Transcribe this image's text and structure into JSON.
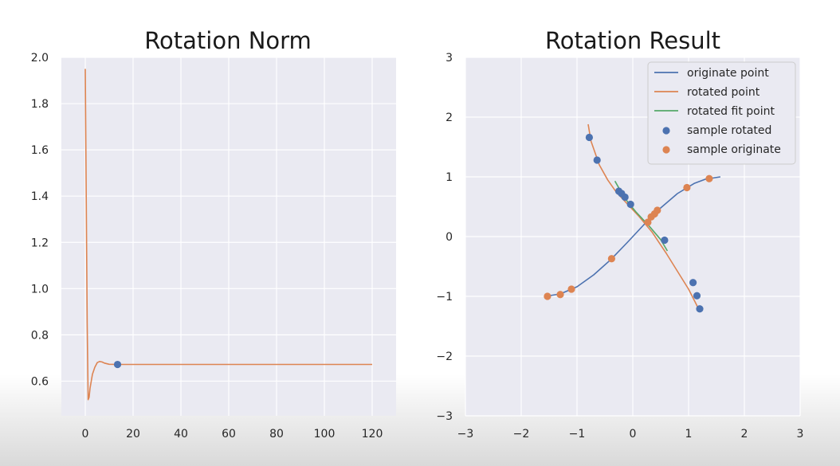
{
  "colors": {
    "panel_bg": "#eaeaf2",
    "grid": "#ffffff",
    "blue": "#4c72b0",
    "orange": "#dd8452",
    "green": "#55a868"
  },
  "chart_data": [
    {
      "type": "line",
      "title": "Rotation Norm",
      "xlim": [
        -10,
        130
      ],
      "ylim": [
        0.45,
        2.0
      ],
      "xticks": [
        0,
        20,
        40,
        60,
        80,
        100,
        120
      ],
      "xtick_labels": [
        "0",
        "20",
        "40",
        "60",
        "80",
        "100",
        "120"
      ],
      "yticks": [
        0.6,
        0.8,
        1.0,
        1.2,
        1.4,
        1.6,
        1.8,
        2.0
      ],
      "ytick_labels": [
        "0.6",
        "0.8",
        "1.0",
        "1.2",
        "1.4",
        "1.6",
        "1.8",
        "2.0"
      ],
      "grid": true,
      "series": [
        {
          "color": "orange",
          "x": [
            0,
            0.4,
            0.8,
            1.2,
            1.6,
            2,
            3,
            4,
            5,
            6,
            7,
            8,
            10,
            13,
            20,
            40,
            80,
            120
          ],
          "y": [
            1.95,
            1.4,
            0.85,
            0.52,
            0.53,
            0.57,
            0.63,
            0.66,
            0.68,
            0.685,
            0.683,
            0.678,
            0.673,
            0.672,
            0.672,
            0.672,
            0.672,
            0.672
          ]
        }
      ],
      "markers": [
        {
          "color": "blue",
          "x": [
            13.5
          ],
          "y": [
            0.672
          ]
        }
      ]
    },
    {
      "type": "line",
      "title": "Rotation Result",
      "xlim": [
        -3,
        3
      ],
      "ylim": [
        -3,
        3
      ],
      "xticks": [
        -3,
        -2,
        -1,
        0,
        1,
        2,
        3
      ],
      "xtick_labels": [
        "−3",
        "−2",
        "−1",
        "0",
        "1",
        "2",
        "3"
      ],
      "yticks": [
        -3,
        -2,
        -1,
        0,
        1,
        2,
        3
      ],
      "ytick_labels": [
        "−3",
        "−2",
        "−1",
        "0",
        "1",
        "2",
        "3"
      ],
      "grid": true,
      "legend_position": "top-right",
      "series": [
        {
          "name": "originate point",
          "color": "blue",
          "x": [
            -1.57,
            -1.3,
            -1.0,
            -0.7,
            -0.4,
            -0.1,
            0.2,
            0.5,
            0.8,
            1.1,
            1.3,
            1.57
          ],
          "y": [
            -1.0,
            -0.96,
            -0.84,
            -0.64,
            -0.39,
            -0.1,
            0.2,
            0.48,
            0.72,
            0.89,
            0.96,
            1.0
          ]
        },
        {
          "name": "rotated point",
          "color": "orange",
          "x": [
            -0.8,
            -0.75,
            -0.6,
            -0.45,
            -0.3,
            -0.1,
            0.1,
            0.35,
            0.6,
            0.8,
            1.0,
            1.12,
            1.2
          ],
          "y": [
            1.88,
            1.6,
            1.2,
            0.95,
            0.75,
            0.55,
            0.35,
            0.07,
            -0.28,
            -0.58,
            -0.88,
            -1.1,
            -1.25
          ]
        },
        {
          "name": "rotated fit point",
          "color": "green",
          "x": [
            -0.32,
            -0.15,
            0.05,
            0.3,
            0.5,
            0.62
          ],
          "y": [
            0.93,
            0.65,
            0.42,
            0.17,
            -0.05,
            -0.24
          ]
        }
      ],
      "scatter": [
        {
          "name": "sample rotated",
          "color": "blue",
          "x": [
            -0.78,
            -0.64,
            -0.25,
            -0.2,
            -0.14,
            -0.04,
            0.57,
            1.08,
            1.15,
            1.2
          ],
          "y": [
            1.66,
            1.28,
            0.76,
            0.72,
            0.66,
            0.54,
            -0.06,
            -0.77,
            -0.99,
            -1.21
          ]
        },
        {
          "name": "sample originate",
          "color": "orange",
          "x": [
            -1.53,
            -1.3,
            -1.1,
            -0.38,
            0.27,
            0.33,
            0.39,
            0.44,
            0.97,
            1.37
          ],
          "y": [
            -1.0,
            -0.97,
            -0.88,
            -0.37,
            0.24,
            0.33,
            0.38,
            0.44,
            0.82,
            0.97
          ]
        }
      ]
    }
  ]
}
